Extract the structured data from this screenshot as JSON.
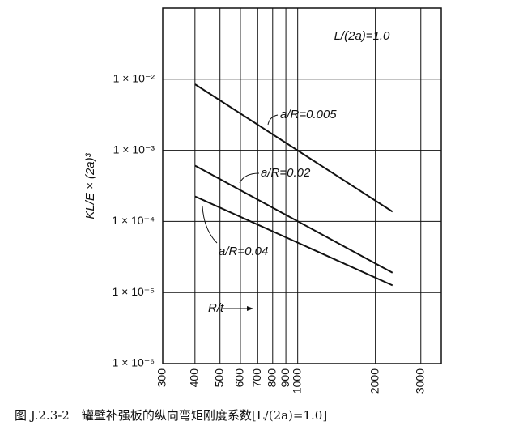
{
  "chart_data": {
    "type": "line",
    "title": "图 J.2.3-2　罐壁补强板的纵向弯矩刚度系数[L/(2a)=1.0]",
    "y_label": "KL/E × (2a)³",
    "log_x": true,
    "log_y": true,
    "grid": true,
    "xlim": [
      300,
      3600
    ],
    "xticks": [
      300,
      400,
      500,
      600,
      700,
      800,
      900,
      1000,
      2000,
      3000
    ],
    "ylim": [
      1e-06,
      0.1
    ],
    "yticks": [
      {
        "value": 1e-06,
        "label": "1 × 10⁻⁶"
      },
      {
        "value": 1e-05,
        "label": "1 × 10⁻⁵"
      },
      {
        "value": 0.0001,
        "label": "1 × 10⁻⁴"
      },
      {
        "value": 0.001,
        "label": "1 × 10⁻³"
      },
      {
        "value": 0.01,
        "label": "1 × 10⁻²"
      }
    ],
    "x": [
      400,
      2330
    ],
    "series": [
      {
        "name": "a/R=0.005",
        "color": "#111111",
        "values": [
          0.0085,
          0.000137
        ]
      },
      {
        "name": "a/R=0.02",
        "color": "#111111",
        "values": [
          0.00061,
          1.9e-05
        ]
      },
      {
        "name": "a/R=0.04",
        "color": "#111111",
        "values": [
          0.000225,
          1.26e-05
        ]
      }
    ],
    "annotations": [
      "L/(2a)=1.0",
      "R/t"
    ]
  }
}
